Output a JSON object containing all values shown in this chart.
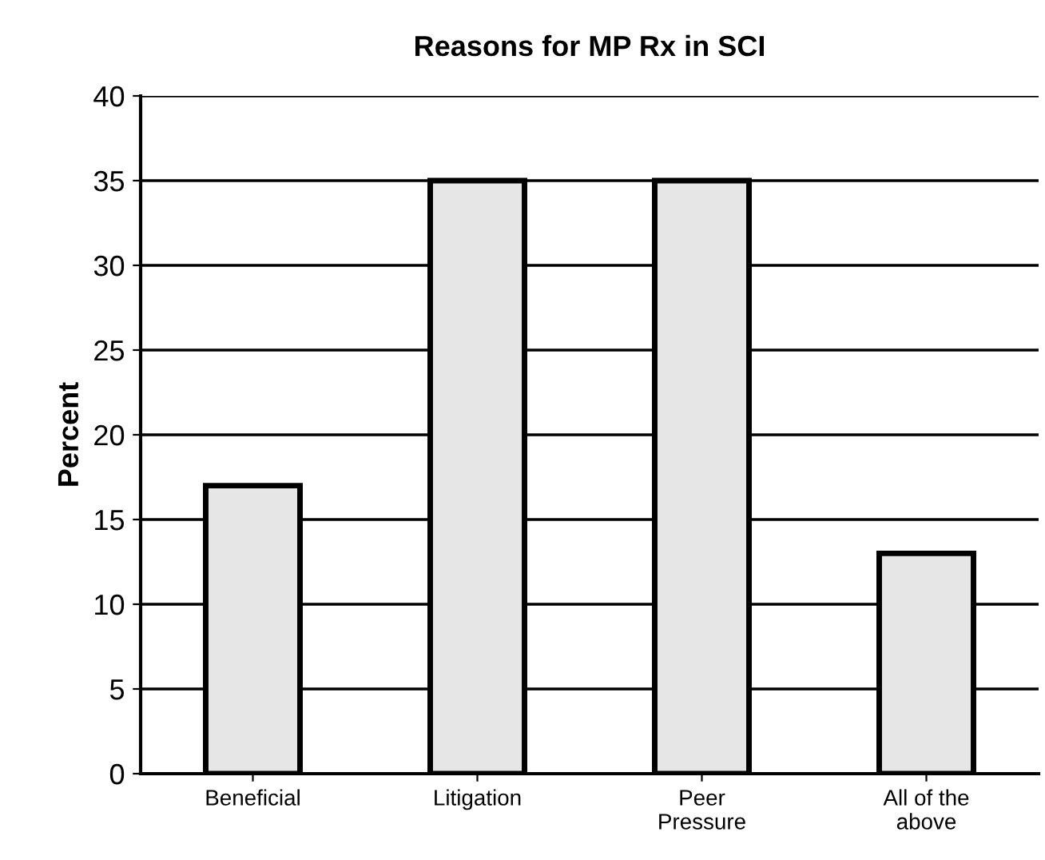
{
  "chart_data": {
    "type": "bar",
    "title": "Reasons for MP Rx in SCI",
    "ylabel": "Percent",
    "categories": [
      "Beneficial",
      "Litigation",
      "Peer\nPressure",
      "All of the\nabove"
    ],
    "values": [
      17,
      35,
      35,
      13
    ],
    "color": "#e6e6e6",
    "ylim": [
      0,
      40
    ],
    "yticks": [
      0,
      5,
      10,
      15,
      20,
      25,
      30,
      35,
      40
    ],
    "grid": "y",
    "legend": false
  }
}
